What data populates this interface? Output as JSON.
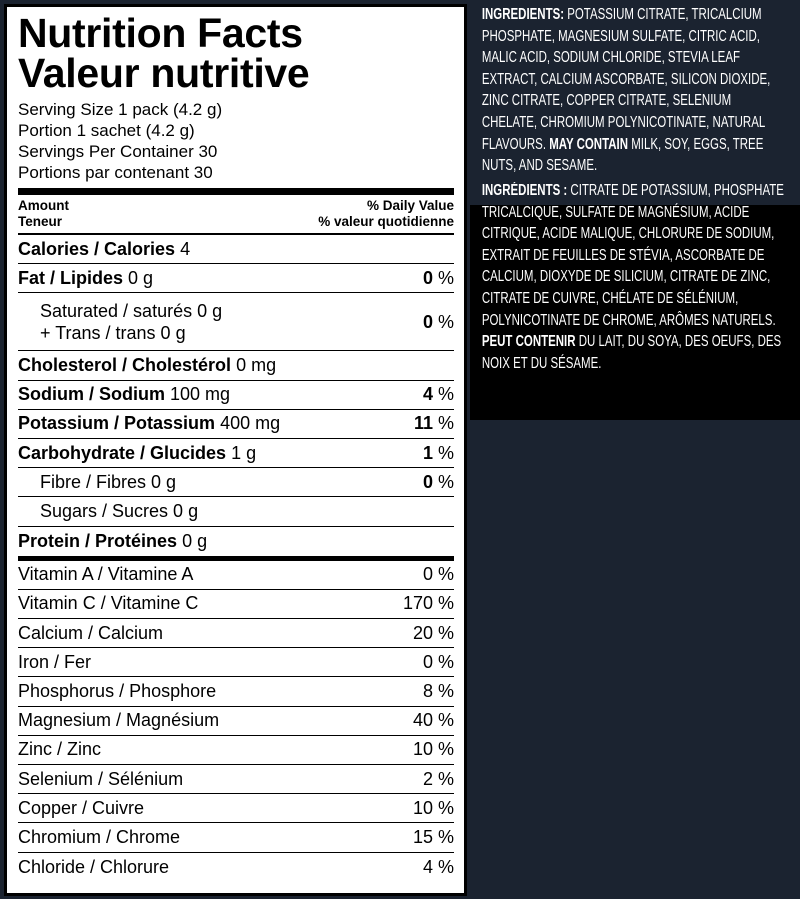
{
  "label": {
    "title_en": "Nutrition Facts",
    "title_fr": "Valeur nutritive",
    "serving": [
      "Serving Size 1 pack (4.2 g)",
      "Portion 1 sachet (4.2 g)",
      "Servings Per Container 30",
      "Portions par contenant 30"
    ],
    "amount": "Amount",
    "teneur": "Teneur",
    "dv": "% Daily Value",
    "vq": "% valeur quotidienne",
    "calories": {
      "name": "Calories / Calories",
      "value": "4"
    },
    "nutrients": [
      {
        "name": "Fat / Lipides",
        "amount": "0 g",
        "pct": "0",
        "bold": true
      },
      {
        "name": "Saturated / saturés 0 g",
        "name2": "+ Trans / trans 0 g",
        "pct": "0",
        "sub": true
      },
      {
        "name": "Cholesterol / Cholestérol",
        "amount": "0 mg",
        "bold": true
      },
      {
        "name": "Sodium / Sodium",
        "amount": "100 mg",
        "pct": "4",
        "bold": true
      },
      {
        "name": "Potassium / Potassium",
        "amount": "400 mg",
        "pct": "11",
        "bold": true
      },
      {
        "name": "Carbohydrate / Glucides",
        "amount": "1 g",
        "pct": "1",
        "bold": true
      },
      {
        "name": "Fibre / Fibres 0 g",
        "pct": "0",
        "sub": true
      },
      {
        "name": "Sugars / Sucres 0 g",
        "sub": true
      },
      {
        "name": "Protein / Protéines",
        "amount": "0 g",
        "bold": true
      }
    ],
    "vitamins": [
      {
        "name": "Vitamin A / Vitamine A",
        "pct": "0 %"
      },
      {
        "name": "Vitamin C / Vitamine C",
        "pct": "170 %"
      },
      {
        "name": "Calcium / Calcium",
        "pct": "20 %"
      },
      {
        "name": "Iron / Fer",
        "pct": "0 %"
      },
      {
        "name": "Phosphorus / Phosphore",
        "pct": "8 %"
      },
      {
        "name": "Magnesium / Magnésium",
        "pct": "40 %"
      },
      {
        "name": "Zinc / Zinc",
        "pct": "10 %"
      },
      {
        "name": "Selenium / Sélénium",
        "pct": "2 %"
      },
      {
        "name": "Copper / Cuivre",
        "pct": "10 %"
      },
      {
        "name": "Chromium / Chrome",
        "pct": "15 %"
      },
      {
        "name": "Chloride / Chlorure",
        "pct": "4 %"
      }
    ]
  },
  "ingredients": {
    "en_label": "INGREDIENTS:",
    "en_text": " POTASSIUM CITRATE, TRICALCIUM PHOSPHATE, MAGNESIUM SULFATE, CITRIC ACID, MALIC ACID, SODIUM CHLORIDE, STEVIA LEAF EXTRACT, CALCIUM ASCORBATE, SILICON DIOXIDE, ZINC CITRATE, COPPER CITRATE, SELENIUM CHELATE, CHROMIUM POLYNICOTINATE, NATURAL FLAVOURS. ",
    "en_may": "MAY CONTAIN",
    "en_allergens": " MILK, SOY, EGGS, TREE NUTS, AND SESAME.",
    "fr_label": "INGRÉDIENTS :",
    "fr_text": " CITRATE DE POTASSIUM, PHOSPHATE TRICALCIQUE, SULFATE DE MAGNÉSIUM, ACIDE CITRIQUE, ACIDE MALIQUE, CHLORURE DE SODIUM, EXTRAIT DE FEUILLES DE STÉVIA, ASCORBATE DE CALCIUM, DIOXYDE DE SILICIUM, CITRATE DE ZINC, CITRATE DE CUIVRE, CHÉLATE DE SÉLÉNIUM, POLYNICOTINATE DE CHROME, ARÔMES NATURELS. ",
    "fr_may": "PEUT CONTENIR",
    "fr_allergens": " DU LAIT, DU SOYA, DES OEUFS, DES NOIX ET DU SÉSAME.",
    "colors": {
      "panel": "#1b2330",
      "french_box": "#000000"
    }
  }
}
